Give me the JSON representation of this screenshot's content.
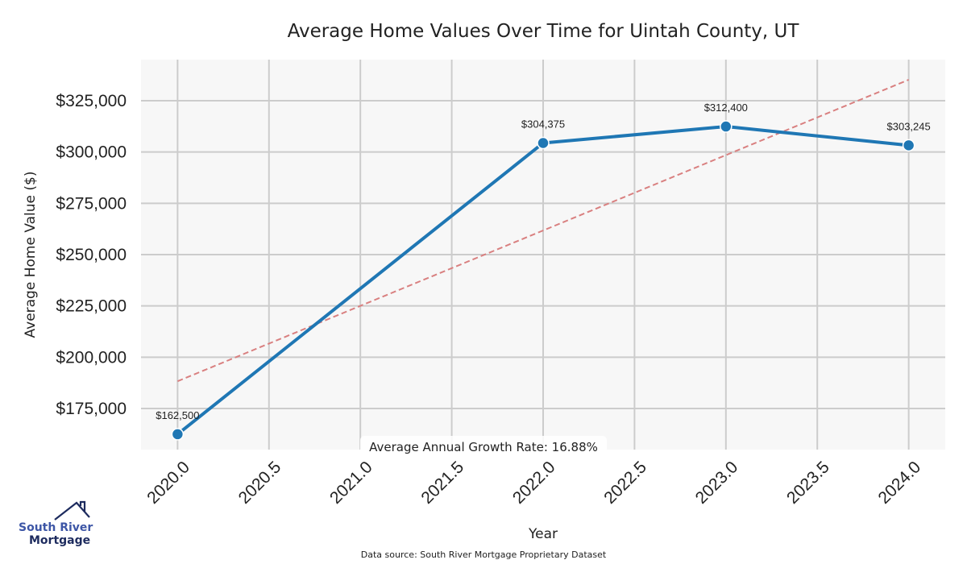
{
  "chart_data": {
    "type": "line",
    "title": "Average Home Values Over Time for Uintah County, UT",
    "xlabel": "Year",
    "ylabel": "Average Home Value ($)",
    "x": [
      2020,
      2022,
      2023,
      2024
    ],
    "series": [
      {
        "name": "Average Home Value",
        "values": [
          162500,
          304375,
          312400,
          303245
        ],
        "labels": [
          "$162,500",
          "$304,375",
          "$312,400",
          "$303,245"
        ],
        "color": "#1f77b4"
      },
      {
        "name": "Trend",
        "style": "dashed",
        "x": [
          2020,
          2024
        ],
        "values": [
          188300,
          335200
        ],
        "color": "#d98080"
      }
    ],
    "xticks": [
      2020.0,
      2020.5,
      2021.0,
      2021.5,
      2022.0,
      2022.5,
      2023.0,
      2023.5,
      2024.0
    ],
    "xtick_labels": [
      "2020.0",
      "2020.5",
      "2021.0",
      "2021.5",
      "2022.0",
      "2022.5",
      "2023.0",
      "2023.5",
      "2024.0"
    ],
    "yticks": [
      175000,
      200000,
      225000,
      250000,
      275000,
      300000,
      325000
    ],
    "ytick_labels": [
      "$175,000",
      "$200,000",
      "$225,000",
      "$250,000",
      "$275,000",
      "$300,000",
      "$325,000"
    ],
    "xlim": [
      2019.8,
      2024.2
    ],
    "ylim": [
      155000,
      345000
    ],
    "grid": true,
    "annotation": "Average Annual Growth Rate: 16.88%",
    "source": "Data source: South River Mortgage Proprietary Dataset",
    "colors": {
      "plot_bg": "#f7f7f7",
      "grid": "#cccccc",
      "line": "#1f77b4",
      "trend": "#d98080"
    }
  },
  "logo": {
    "line1": "South River",
    "line2": "Mortgage"
  }
}
